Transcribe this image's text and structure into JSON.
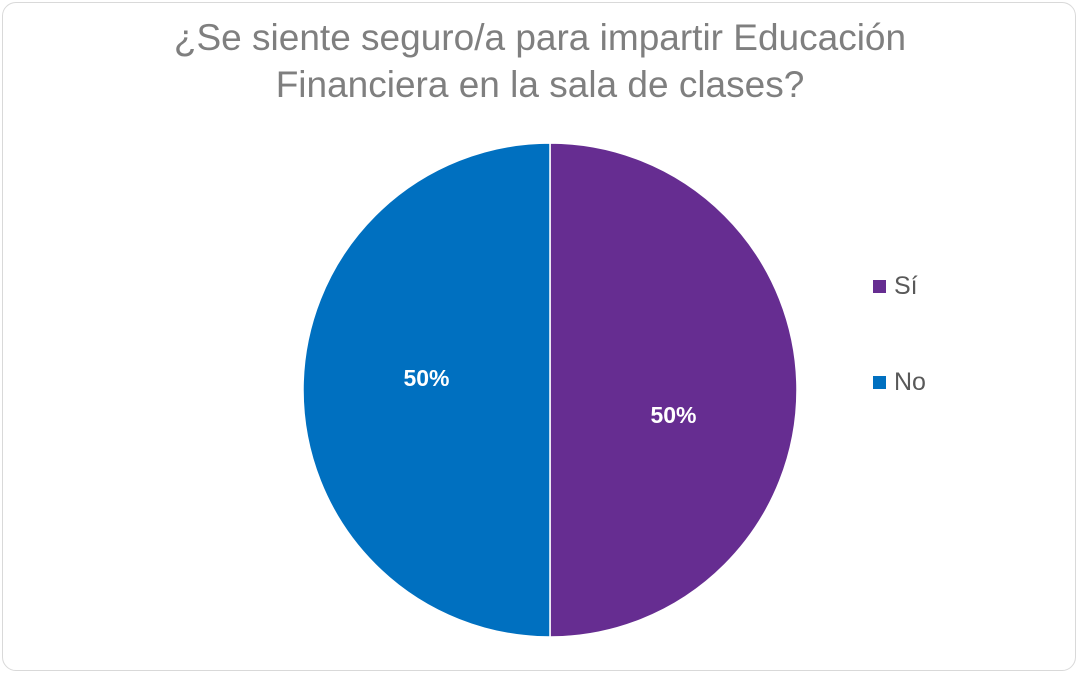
{
  "chart_data": {
    "type": "pie",
    "title": "¿Se siente seguro/a para impartir Educación Financiera en la sala de clases?",
    "title_lines": [
      "¿Se siente seguro/a para impartir Educación",
      "Financiera en la sala de clases?"
    ],
    "categories": [
      "Sí",
      "No"
    ],
    "values": [
      50,
      50
    ],
    "data_labels": [
      "50%",
      "50%"
    ],
    "colors": [
      "#662d91",
      "#0070c0"
    ],
    "legend_position": "right"
  }
}
